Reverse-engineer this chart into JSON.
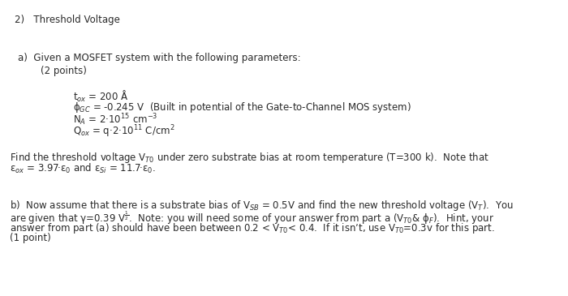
{
  "bg_color": "#ffffff",
  "text_color": "#2a2a2a",
  "figsize": [
    7.0,
    3.65
  ],
  "dpi": 100,
  "title": "2)   Threshold Voltage",
  "section_a_header": "a)  Given a MOSFET system with the following parameters:",
  "section_a_points": "    (2 points)",
  "param1": "t$_{ox}$ = 200 Å",
  "param2": "ϕ$_{GC}$ = -0.245 V  (Built in potential of the Gate-to-Channel MOS system)",
  "param3": "N$_{A}$ = 2·10$^{15}$ cm$^{-3}$",
  "param4": "Q$_{ox}$ = q·2·10$^{11}$ C/cm$^{2}$",
  "find_text1": "Find the threshold voltage V$_{T0}$ under zero substrate bias at room temperature (T=300 k).  Note that",
  "find_text2": "ε$_{ox}$ = 3.97·ε$_{0}$ and ε$_{Si}$ = 11.7·ε$_{0}$.",
  "section_b_line1": "b)  Now assume that there is a substrate bias of V$_{SB}$ = 0.5V and find the new threshold voltage (V$_{T}$).  You",
  "section_b_line2": "are given that γ=0.39 V$^{\\frac{1}{2}}$.  Note: you will need some of your answer from part a (V$_{T0}$& ϕ$_{F}$).  Hint, your",
  "section_b_line3": "answer from part (a) should have been between 0.2 < V$_{T0}$< 0.4.  If it isn’t, use V$_{T0}$=0.3v for this part.",
  "section_b_points": "(1 point)",
  "font_size": 8.5
}
